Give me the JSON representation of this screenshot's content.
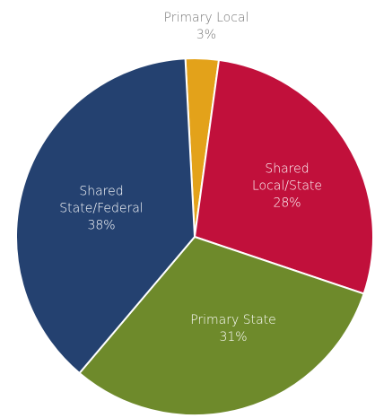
{
  "chart_data": {
    "type": "pie",
    "categories": [
      "Primary Local",
      "Shared Local/State",
      "Primary State",
      "Shared State/Federal"
    ],
    "values": [
      3,
      28,
      31,
      38
    ],
    "value_labels": [
      "3%",
      "28%",
      "31%",
      "38%"
    ],
    "colors": [
      "#e3a21a",
      "#c1103b",
      "#6e8a2b",
      "#244170"
    ]
  }
}
